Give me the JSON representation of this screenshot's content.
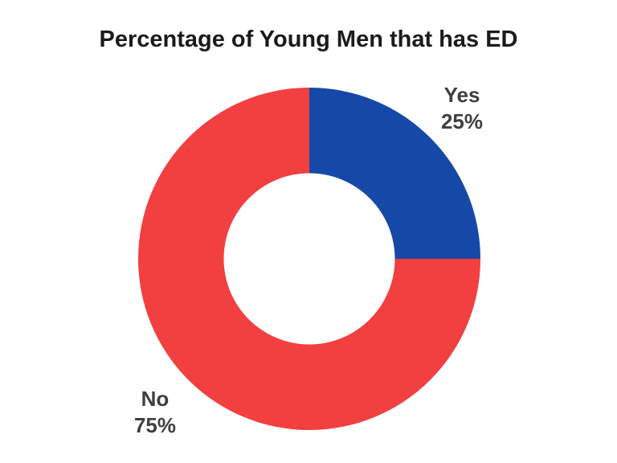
{
  "page": {
    "background_color": "#FFFFFF"
  },
  "chart_data": {
    "type": "pie",
    "subtype": "donut",
    "title": "Percentage of Young Men that has ED",
    "categories": [
      "Yes",
      "No"
    ],
    "values": [
      25,
      75
    ],
    "slices": [
      {
        "label": "Yes",
        "value": 25,
        "value_text": "25%",
        "color": "#1648A8"
      },
      {
        "label": "No",
        "value": 75,
        "value_text": "75%",
        "color": "#F23F3F"
      }
    ],
    "start_angle_deg": 0,
    "direction": "clockwise",
    "inner_radius_ratio": 0.5,
    "legend": "none",
    "labels_position": "outside",
    "title_color": "#1B1B1B",
    "label_color": "#3F3F3F"
  }
}
